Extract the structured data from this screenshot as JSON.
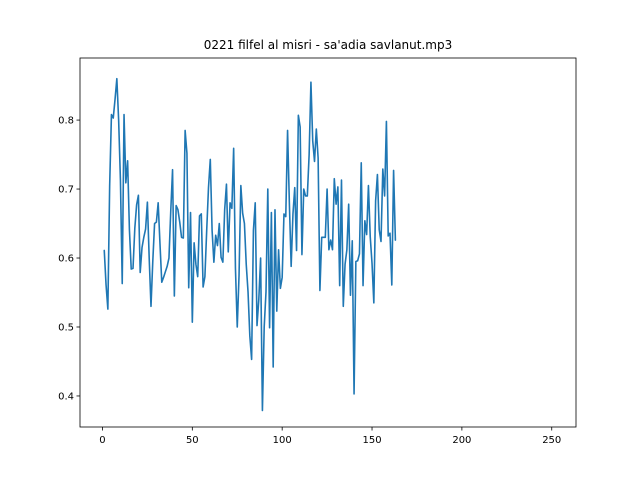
{
  "chart_data": {
    "type": "line",
    "title": "0221 filfel al misri - sa'adia savlanut.mp3",
    "xlabel": "",
    "ylabel": "",
    "xlim": [
      -12.5,
      263.5
    ],
    "ylim": [
      0.355,
      0.89
    ],
    "xticks": [
      0,
      50,
      100,
      150,
      200,
      250
    ],
    "yticks": [
      0.4,
      0.5,
      0.6,
      0.7,
      0.8
    ],
    "ytick_labels": [
      "0.4",
      "0.5",
      "0.6",
      "0.7",
      "0.8"
    ],
    "grid": false,
    "legend": "none",
    "line_color": "#1f77b4",
    "series": [
      {
        "x_start": 1,
        "x_step": 1,
        "values": [
          0.611,
          0.561,
          0.526,
          0.704,
          0.808,
          0.803,
          0.83,
          0.86,
          0.8,
          0.713,
          0.563,
          0.808,
          0.709,
          0.741,
          0.641,
          0.584,
          0.585,
          0.643,
          0.677,
          0.691,
          0.579,
          0.615,
          0.63,
          0.642,
          0.681,
          0.6,
          0.53,
          0.595,
          0.65,
          0.652,
          0.68,
          0.621,
          0.565,
          0.572,
          0.58,
          0.588,
          0.6,
          0.668,
          0.728,
          0.545,
          0.676,
          0.67,
          0.652,
          0.63,
          0.629,
          0.785,
          0.752,
          0.557,
          0.666,
          0.507,
          0.622,
          0.591,
          0.573,
          0.661,
          0.664,
          0.558,
          0.573,
          0.64,
          0.702,
          0.743,
          0.64,
          0.594,
          0.633,
          0.618,
          0.65,
          0.601,
          0.594,
          0.67,
          0.707,
          0.609,
          0.68,
          0.672,
          0.759,
          0.585,
          0.5,
          0.575,
          0.705,
          0.665,
          0.65,
          0.591,
          0.551,
          0.487,
          0.453,
          0.64,
          0.68,
          0.502,
          0.54,
          0.6,
          0.379,
          0.5,
          0.551,
          0.7,
          0.499,
          0.666,
          0.442,
          0.67,
          0.523,
          0.612,
          0.556,
          0.572,
          0.664,
          0.66,
          0.785,
          0.68,
          0.588,
          0.664,
          0.702,
          0.611,
          0.807,
          0.79,
          0.605,
          0.7,
          0.69,
          0.69,
          0.75,
          0.855,
          0.77,
          0.74,
          0.787,
          0.745,
          0.553,
          0.63,
          0.63,
          0.63,
          0.7,
          0.612,
          0.626,
          0.612,
          0.715,
          0.678,
          0.703,
          0.56,
          0.713,
          0.53,
          0.591,
          0.612,
          0.678,
          0.546,
          0.625,
          0.403,
          0.595,
          0.596,
          0.606,
          0.738,
          0.56,
          0.654,
          0.634,
          0.705,
          0.631,
          0.592,
          0.535,
          0.683,
          0.721,
          0.641,
          0.624,
          0.729,
          0.69,
          0.798,
          0.632,
          0.636,
          0.561,
          0.727,
          0.626
        ]
      }
    ]
  }
}
